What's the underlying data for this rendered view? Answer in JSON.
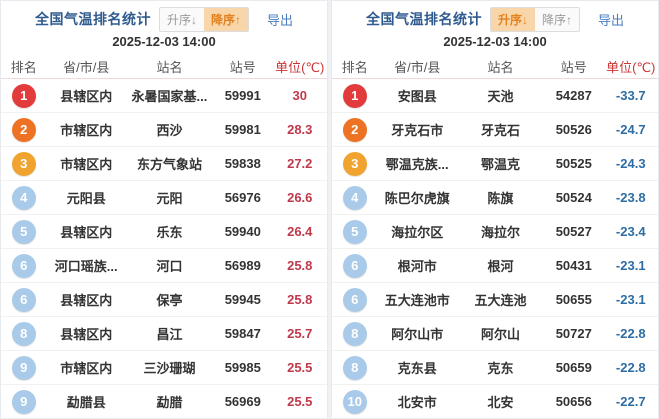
{
  "colors": {
    "rank1": "#e23b3b",
    "rank2": "#ed7224",
    "rank3": "#f0a32f",
    "rank_other": "#a9cbe9",
    "hot_value": "#c0394b",
    "cold_value": "#2e6da4"
  },
  "panels": [
    {
      "title": "全国气温排名统计",
      "sort_asc_label": "升序↓",
      "sort_desc_label": "降序↑",
      "active_sort": "desc",
      "export_label": "导出",
      "timestamp": "2025-12-03 14:00",
      "columns": [
        "排名",
        "省/市/县",
        "站名",
        "站号",
        "单位(℃)"
      ],
      "value_kind": "hot",
      "rows": [
        {
          "rank": "1",
          "region": "县辖区内",
          "station": "永暑国家基...",
          "station_id": "59991",
          "value": "30"
        },
        {
          "rank": "2",
          "region": "市辖区内",
          "station": "西沙",
          "station_id": "59981",
          "value": "28.3"
        },
        {
          "rank": "3",
          "region": "市辖区内",
          "station": "东方气象站",
          "station_id": "59838",
          "value": "27.2"
        },
        {
          "rank": "4",
          "region": "元阳县",
          "station": "元阳",
          "station_id": "56976",
          "value": "26.6"
        },
        {
          "rank": "5",
          "region": "县辖区内",
          "station": "乐东",
          "station_id": "59940",
          "value": "26.4"
        },
        {
          "rank": "6",
          "region": "河口瑶族...",
          "station": "河口",
          "station_id": "56989",
          "value": "25.8"
        },
        {
          "rank": "6",
          "region": "县辖区内",
          "station": "保亭",
          "station_id": "59945",
          "value": "25.8"
        },
        {
          "rank": "8",
          "region": "县辖区内",
          "station": "昌江",
          "station_id": "59847",
          "value": "25.7"
        },
        {
          "rank": "9",
          "region": "市辖区内",
          "station": "三沙珊瑚",
          "station_id": "59985",
          "value": "25.5"
        },
        {
          "rank": "9",
          "region": "勐腊县",
          "station": "勐腊",
          "station_id": "56969",
          "value": "25.5"
        }
      ]
    },
    {
      "title": "全国气温排名统计",
      "sort_asc_label": "升序↓",
      "sort_desc_label": "降序↑",
      "active_sort": "asc",
      "export_label": "导出",
      "timestamp": "2025-12-03 14:00",
      "columns": [
        "排名",
        "省/市/县",
        "站名",
        "站号",
        "单位(℃)"
      ],
      "value_kind": "cold",
      "rows": [
        {
          "rank": "1",
          "region": "安图县",
          "station": "天池",
          "station_id": "54287",
          "value": "-33.7"
        },
        {
          "rank": "2",
          "region": "牙克石市",
          "station": "牙克石",
          "station_id": "50526",
          "value": "-24.7"
        },
        {
          "rank": "3",
          "region": "鄂温克族...",
          "station": "鄂温克",
          "station_id": "50525",
          "value": "-24.3"
        },
        {
          "rank": "4",
          "region": "陈巴尔虎旗",
          "station": "陈旗",
          "station_id": "50524",
          "value": "-23.8"
        },
        {
          "rank": "5",
          "region": "海拉尔区",
          "station": "海拉尔",
          "station_id": "50527",
          "value": "-23.4"
        },
        {
          "rank": "6",
          "region": "根河市",
          "station": "根河",
          "station_id": "50431",
          "value": "-23.1"
        },
        {
          "rank": "6",
          "region": "五大连池市",
          "station": "五大连池",
          "station_id": "50655",
          "value": "-23.1"
        },
        {
          "rank": "8",
          "region": "阿尔山市",
          "station": "阿尔山",
          "station_id": "50727",
          "value": "-22.8"
        },
        {
          "rank": "8",
          "region": "克东县",
          "station": "克东",
          "station_id": "50659",
          "value": "-22.8"
        },
        {
          "rank": "10",
          "region": "北安市",
          "station": "北安",
          "station_id": "50656",
          "value": "-22.7"
        }
      ]
    }
  ]
}
